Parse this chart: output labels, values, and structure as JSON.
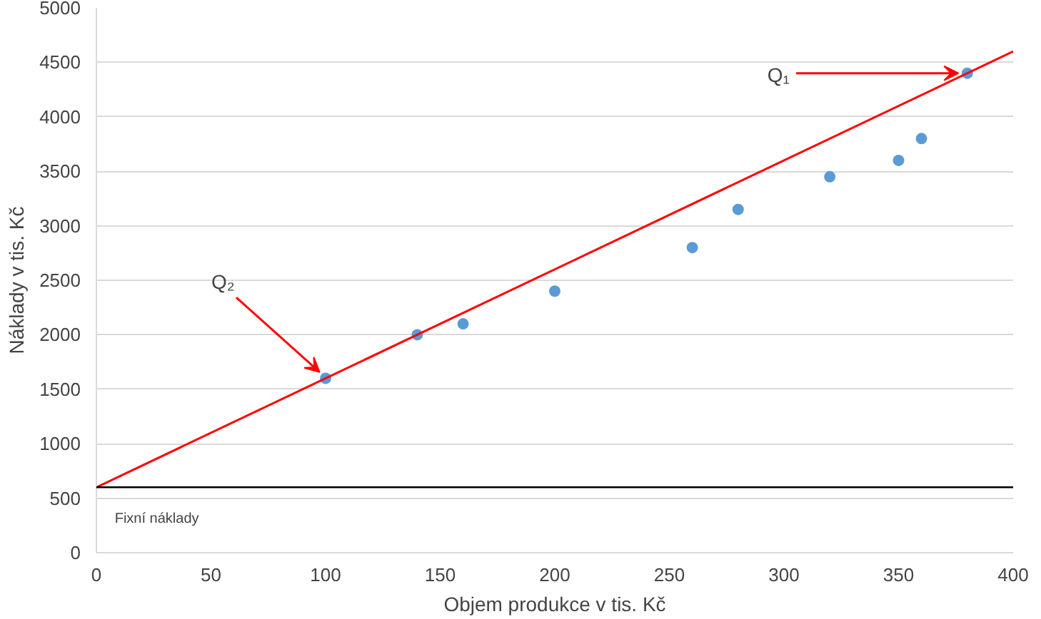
{
  "chart_data": {
    "type": "scatter",
    "xlabel": "Objem produkce v tis. Kč",
    "ylabel": "Náklady v tis. Kč",
    "series": [
      {
        "color": "#5b9bd5",
        "marker": "circle",
        "x": [
          100,
          140,
          160,
          200,
          260,
          280,
          320,
          350,
          360,
          380
        ],
        "values": [
          1600,
          2000,
          2100,
          2400,
          2800,
          3150,
          3450,
          3600,
          3800,
          4400
        ]
      },
      {
        "type": "line",
        "color": "#ff0000",
        "x": [
          0,
          400
        ],
        "values": [
          600,
          4600
        ]
      }
    ],
    "ref_lines": [
      {
        "axis": "y",
        "value": 600,
        "color": "#000000"
      }
    ],
    "annotations": [
      {
        "text": "Q₁",
        "x": 380,
        "y": 4400
      },
      {
        "text": "Q₂",
        "x": 100,
        "y": 1600
      },
      "Fixní náklady"
    ],
    "xlim": [
      0,
      400
    ],
    "xticks": [
      0,
      50,
      100,
      150,
      200,
      250,
      300,
      350,
      400
    ],
    "ylim": [
      0,
      5000
    ],
    "yticks": [
      0,
      500,
      1000,
      1500,
      2000,
      2500,
      3000,
      3500,
      4000,
      4500,
      5000
    ],
    "grid": "y",
    "legend": false
  }
}
